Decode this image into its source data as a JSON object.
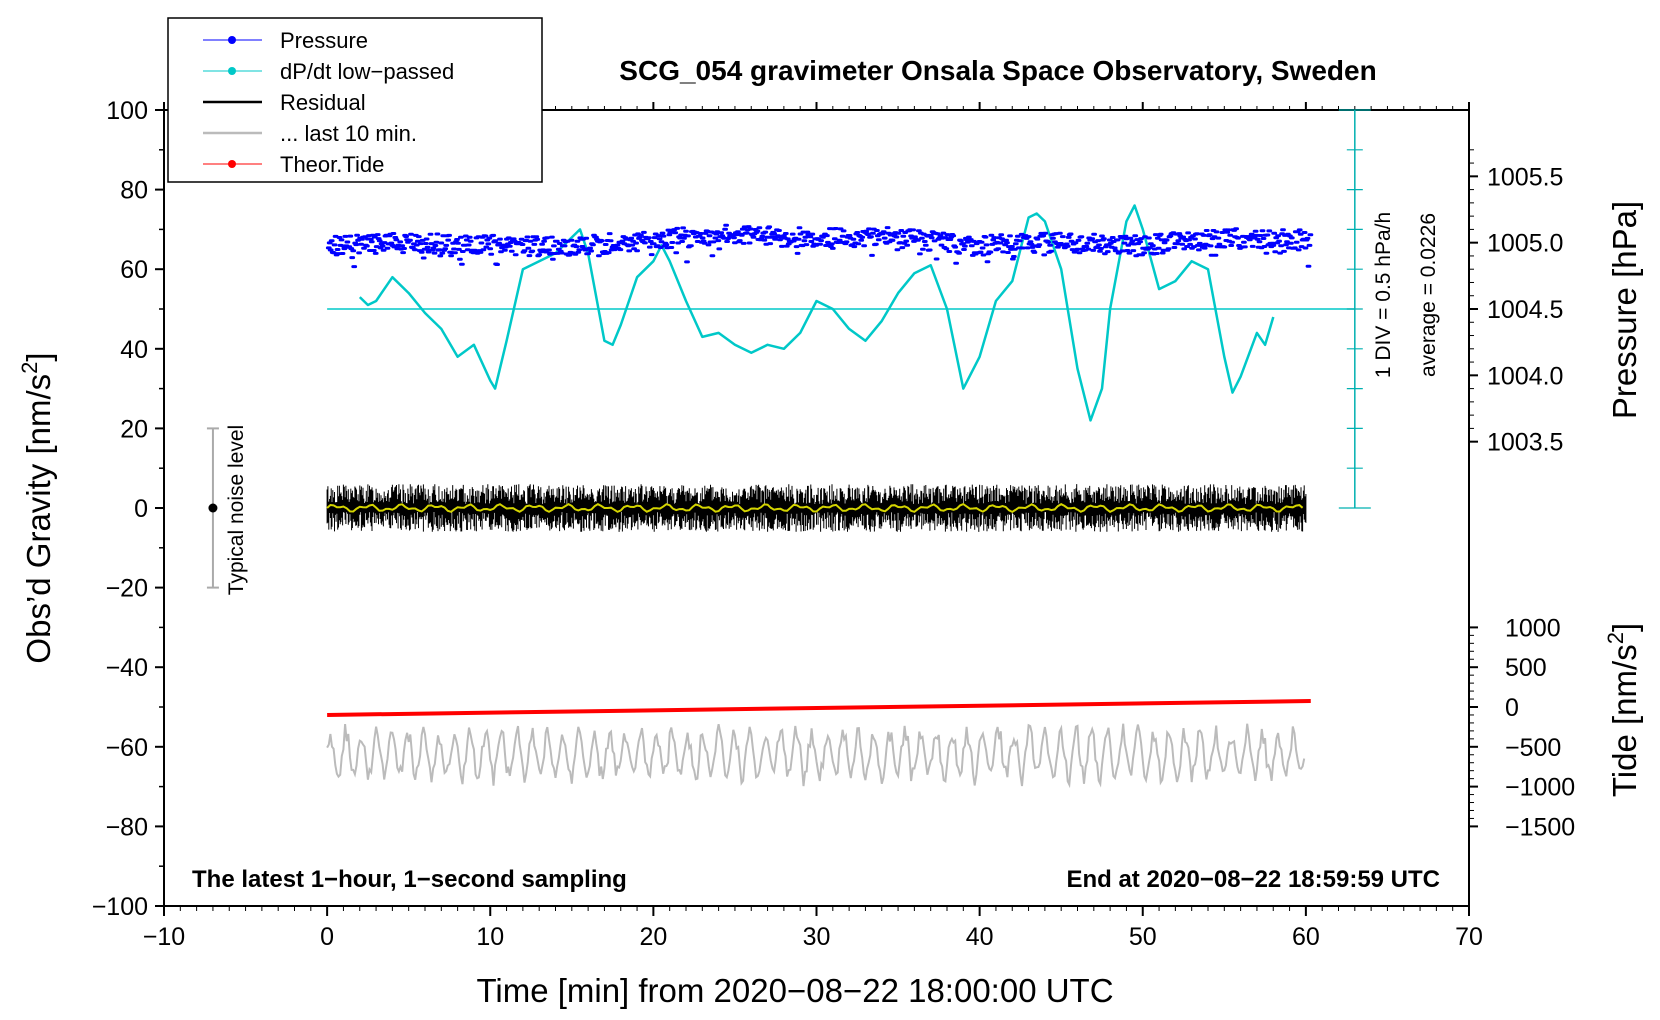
{
  "chart_data": {
    "type": "line",
    "title": "SCG_054 gravimeter Onsala Space Observatory, Sweden",
    "xlabel": "Time [min] from 2020−08−22 18:00:00 UTC",
    "ylabel": "Obs’d Gravity [nm/s²]",
    "ylabel_main": "Obs’d Gravity [nm/s",
    "ylabel_exp": "2",
    "ylabel_end": "]",
    "xlim": [
      -10,
      70
    ],
    "ylim": [
      -100,
      100
    ],
    "x_ticks": [
      -10,
      0,
      10,
      20,
      30,
      40,
      50,
      60,
      70
    ],
    "x_tick_labels": [
      "−10",
      "0",
      "10",
      "20",
      "30",
      "40",
      "50",
      "60",
      "70"
    ],
    "y_ticks": [
      -100,
      -80,
      -60,
      -40,
      -20,
      0,
      20,
      40,
      60,
      80,
      100
    ],
    "y_tick_labels": [
      "−100",
      "−80",
      "−60",
      "−40",
      "−20",
      "0",
      "20",
      "40",
      "60",
      "80",
      "100"
    ],
    "right_axis_pressure": {
      "label": "Pressure [hPa]",
      "tick_values": [
        1003.5,
        1004.0,
        1004.5,
        1005.0,
        1005.5
      ],
      "tick_labels": [
        "1003.5",
        "1004.0",
        "1004.5",
        "1005.0",
        "1005.5"
      ],
      "gravity_equivalent_at_1004_5": 50,
      "gravity_per_hpa": 33.333
    },
    "right_axis_tide": {
      "label_main": "Tide [nm/s",
      "label_exp": "2",
      "label_end": "]",
      "tick_values": [
        1000,
        500,
        0,
        -500,
        -1000,
        -1500
      ],
      "tick_labels": [
        "1000",
        "500",
        "0",
        "−500",
        "−1000",
        "−1500"
      ],
      "gravity_equivalent_at_0": -50,
      "gravity_per_unit": 0.02
    },
    "legend": [
      {
        "label": "Pressure",
        "color": "#0000ff",
        "style": "line-dot"
      },
      {
        "label": "dP/dt low−passed",
        "color": "#00c8c8",
        "style": "line-dot"
      },
      {
        "label": "Residual",
        "color": "#000000",
        "style": "line"
      },
      {
        "label": "... last 10 min.",
        "color": "#bbbbbb",
        "style": "line"
      },
      {
        "label": "Theor.Tide",
        "color": "#ff0000",
        "style": "line-dot"
      }
    ],
    "series": [
      {
        "name": "Pressure",
        "color": "#0000ff",
        "unit": "hPa",
        "x": [
          0,
          5,
          10,
          15,
          20,
          25,
          30,
          35,
          40,
          45,
          50,
          55,
          60
        ],
        "values": [
          1004.98,
          1005.0,
          1004.98,
          1004.97,
          1005.02,
          1005.07,
          1005.03,
          1005.04,
          1004.98,
          1005.0,
          1004.98,
          1005.04,
          1005.03
        ]
      },
      {
        "name": "dP/dt low−passed",
        "color": "#00c8c8",
        "unit": "gravity-axis units",
        "x": [
          2,
          2.5,
          3,
          4,
          5,
          6,
          7,
          8,
          9,
          10,
          10.3,
          11,
          12,
          13,
          14,
          15,
          15.5,
          16,
          17,
          17.5,
          18,
          19,
          20,
          20.5,
          21,
          22,
          23,
          24,
          25,
          26,
          27,
          28,
          29,
          30,
          31,
          32,
          33,
          34,
          35,
          36,
          37,
          38,
          39,
          40,
          41,
          42,
          43,
          43.5,
          44,
          45,
          46,
          46.8,
          47.5,
          48,
          49,
          49.5,
          50,
          51,
          52,
          53,
          54,
          55,
          55.5,
          56,
          57,
          57.5,
          58
        ],
        "values": [
          53,
          51,
          52,
          58,
          54,
          49,
          45,
          38,
          41,
          32,
          30,
          42,
          60,
          62,
          64,
          68,
          70,
          64,
          42,
          41,
          46,
          58,
          62,
          66,
          62,
          52,
          43,
          44,
          41,
          39,
          41,
          40,
          44,
          52,
          50,
          45,
          42,
          47,
          54,
          59,
          61,
          50,
          30,
          38,
          52,
          57,
          73,
          74,
          72,
          60,
          35,
          22,
          30,
          50,
          72,
          76,
          70,
          55,
          57,
          62,
          60,
          38,
          29,
          33,
          44,
          41,
          48
        ]
      },
      {
        "name": "dP/dt reference level",
        "color": "#00c8c8",
        "x": [
          0,
          63
        ],
        "values": [
          50,
          50
        ]
      },
      {
        "name": "Residual",
        "color": "#000000",
        "x_range": [
          0,
          60
        ],
        "band": [
          -6,
          6
        ],
        "values": [
          0,
          0
        ]
      },
      {
        "name": "Residual smoothed",
        "color": "#d4d400",
        "x_range": [
          0,
          60
        ],
        "values": [
          0,
          0
        ]
      },
      {
        "name": "... last 10 min.",
        "color": "#bbbbbb",
        "x_range": [
          0,
          60
        ],
        "center": -62,
        "band": [
          -70,
          -54
        ]
      },
      {
        "name": "Theor.Tide",
        "color": "#ff0000",
        "unit": "nm/s² (right tide axis)",
        "x": [
          0,
          60.3
        ],
        "values": [
          -52,
          -48.5
        ]
      }
    ],
    "noise_bar": {
      "label": "Typical noise level",
      "x": -7,
      "range": [
        -20,
        20
      ],
      "center": 0
    },
    "pressure_scale_bar": {
      "x": 63,
      "range": [
        0,
        100
      ],
      "label_div": "1 DIV = 0.5 hPa/h",
      "label_avg": "average = 0.0226"
    },
    "annotations": {
      "bottom_left": "The latest 1−hour, 1−second sampling",
      "bottom_right": "End at 2020−08−22 18:59:59 UTC"
    }
  }
}
